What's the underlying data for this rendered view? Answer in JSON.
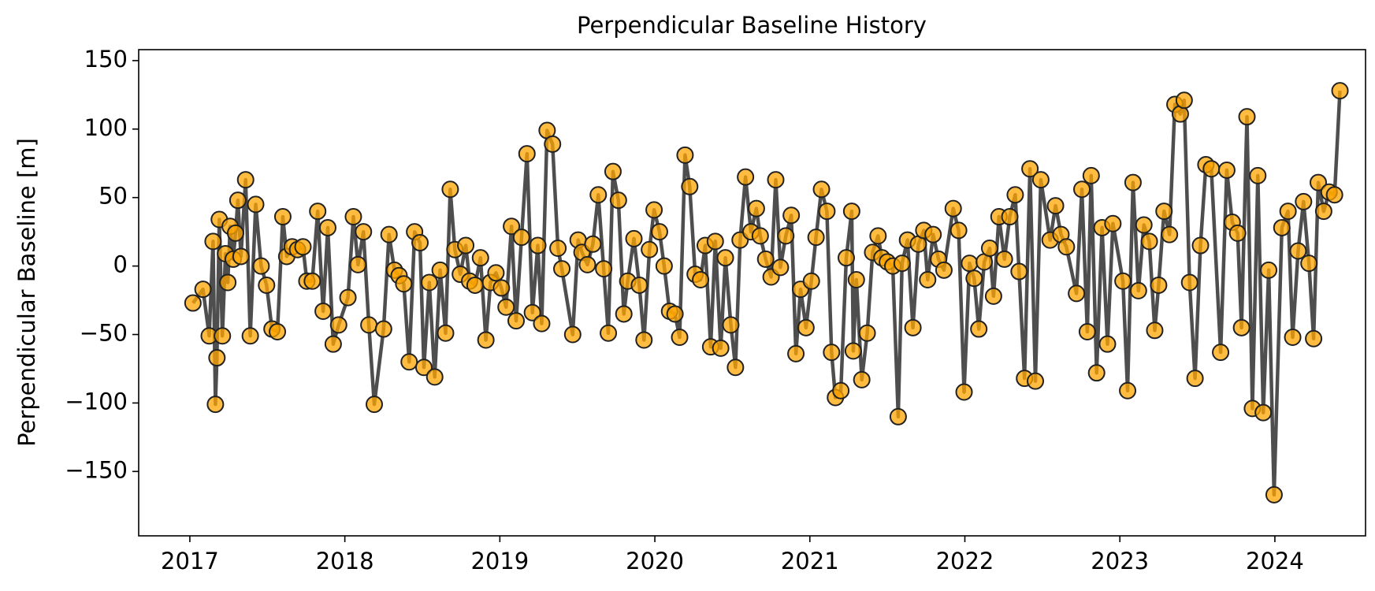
{
  "chart_data": {
    "type": "line",
    "title": "Perpendicular Baseline History",
    "ylabel": "Perpendicular Baseline [m]",
    "x": [
      2017.02,
      2017.085,
      2017.125,
      2017.15,
      2017.165,
      2017.175,
      2017.19,
      2017.21,
      2017.23,
      2017.245,
      2017.26,
      2017.28,
      2017.295,
      2017.31,
      2017.33,
      2017.36,
      2017.39,
      2017.425,
      2017.46,
      2017.495,
      2017.53,
      2017.565,
      2017.6,
      2017.625,
      2017.66,
      2017.695,
      2017.73,
      2017.755,
      2017.79,
      2017.825,
      2017.86,
      2017.89,
      2017.925,
      2017.96,
      2018.02,
      2018.055,
      2018.085,
      2018.12,
      2018.155,
      2018.19,
      2018.25,
      2018.285,
      2018.32,
      2018.35,
      2018.38,
      2018.415,
      2018.45,
      2018.485,
      2018.51,
      2018.545,
      2018.58,
      2018.615,
      2018.65,
      2018.68,
      2018.71,
      2018.745,
      2018.78,
      2018.805,
      2018.84,
      2018.875,
      2018.91,
      2018.94,
      2018.975,
      2019.01,
      2019.04,
      2019.075,
      2019.105,
      2019.14,
      2019.175,
      2019.21,
      2019.245,
      2019.27,
      2019.305,
      2019.34,
      2019.375,
      2019.4,
      2019.47,
      2019.505,
      2019.53,
      2019.565,
      2019.6,
      2019.635,
      2019.67,
      2019.7,
      2019.73,
      2019.765,
      2019.8,
      2019.825,
      2019.865,
      2019.9,
      2019.93,
      2019.965,
      2019.995,
      2020.03,
      2020.06,
      2020.095,
      2020.13,
      2020.16,
      2020.195,
      2020.225,
      2020.26,
      2020.295,
      2020.325,
      2020.36,
      2020.39,
      2020.425,
      2020.455,
      2020.49,
      2020.52,
      2020.55,
      2020.585,
      2020.62,
      2020.655,
      2020.68,
      2020.715,
      2020.75,
      2020.78,
      2020.81,
      2020.845,
      2020.88,
      2020.91,
      2020.94,
      2020.975,
      2021.01,
      2021.04,
      2021.075,
      2021.11,
      2021.14,
      2021.165,
      2021.2,
      2021.235,
      2021.27,
      2021.28,
      2021.3,
      2021.335,
      2021.37,
      2021.405,
      2021.44,
      2021.465,
      2021.5,
      2021.535,
      2021.57,
      2021.595,
      2021.63,
      2021.665,
      2021.7,
      2021.735,
      2021.76,
      2021.795,
      2021.83,
      2021.865,
      2021.925,
      2021.96,
      2021.995,
      2022.03,
      2022.06,
      2022.09,
      2022.125,
      2022.16,
      2022.185,
      2022.22,
      2022.255,
      2022.29,
      2022.325,
      2022.35,
      2022.385,
      2022.42,
      2022.455,
      2022.49,
      2022.55,
      2022.585,
      2022.62,
      2022.655,
      2022.72,
      2022.755,
      2022.79,
      2022.815,
      2022.85,
      2022.885,
      2022.92,
      2022.955,
      2023.02,
      2023.05,
      2023.085,
      2023.12,
      2023.155,
      2023.19,
      2023.225,
      2023.25,
      2023.285,
      2023.32,
      2023.355,
      2023.39,
      2023.415,
      2023.45,
      2023.485,
      2023.52,
      2023.555,
      2023.59,
      2023.65,
      2023.69,
      2023.725,
      2023.76,
      2023.785,
      2023.82,
      2023.855,
      2023.89,
      2023.925,
      2023.96,
      2023.995,
      2024.045,
      2024.085,
      2024.115,
      2024.15,
      2024.185,
      2024.22,
      2024.25,
      2024.28,
      2024.315,
      2024.35,
      2024.385,
      2024.42
    ],
    "values": [
      -27,
      -17,
      -51,
      18,
      -101,
      -67,
      34,
      -51,
      9,
      -12,
      29,
      5,
      24,
      48,
      7,
      63,
      -51,
      45,
      0,
      -14,
      -46,
      -48,
      36,
      7,
      14,
      12,
      14,
      -11,
      -11,
      40,
      -33,
      28,
      -57,
      -43,
      -23,
      36,
      1,
      25,
      -43,
      -101,
      -46,
      23,
      -3,
      -7,
      -13,
      -70,
      25,
      17,
      -74,
      -12,
      -81,
      -3,
      -49,
      56,
      12,
      -6,
      15,
      -11,
      -14,
      6,
      -54,
      -12,
      -5,
      -16,
      -30,
      29,
      -40,
      21,
      82,
      -34,
      15,
      -42,
      99,
      89,
      13,
      -2,
      -50,
      19,
      10,
      1,
      16,
      52,
      -2,
      -49,
      69,
      48,
      -35,
      -11,
      20,
      -14,
      -54,
      12,
      41,
      25,
      0,
      -33,
      -35,
      -52,
      81,
      58,
      -6,
      -10,
      15,
      -59,
      18,
      -60,
      6,
      -43,
      -74,
      19,
      65,
      25,
      42,
      22,
      5,
      -8,
      63,
      -1,
      22,
      37,
      -64,
      -17,
      -45,
      -11,
      21,
      56,
      40,
      -63,
      -96,
      -91,
      6,
      40,
      -62,
      -10,
      -83,
      -49,
      10,
      22,
      6,
      3,
      0,
      -110,
      2,
      19,
      -45,
      16,
      26,
      -10,
      23,
      5,
      -3,
      42,
      26,
      -92,
      2,
      -9,
      -46,
      3,
      13,
      -22,
      36,
      5,
      36,
      52,
      -4,
      -82,
      71,
      -84,
      63,
      19,
      44,
      23,
      14,
      -20,
      56,
      -48,
      66,
      -78,
      28,
      -57,
      31,
      -11,
      -91,
      61,
      -18,
      30,
      18,
      -47,
      -14,
      40,
      23,
      118,
      111,
      121,
      -12,
      -82,
      15,
      74,
      71,
      -63,
      70,
      32,
      24,
      -45,
      109,
      -104,
      66,
      -107,
      -3,
      -167,
      28,
      40,
      -52,
      11,
      47,
      2,
      -53,
      61,
      40,
      54,
      52,
      128
    ],
    "color": "#ffa500",
    "line_color": "#444444",
    "xlim": [
      2016.67,
      2024.585
    ],
    "xticks": [
      2017,
      2018,
      2019,
      2020,
      2021,
      2022,
      2023,
      2024
    ],
    "ylim": [
      -197,
      158
    ],
    "yticks": [
      {
        "value": -150,
        "label": "−150"
      },
      {
        "value": -100,
        "label": "−100"
      },
      {
        "value": -50,
        "label": "−50"
      },
      0,
      50,
      100,
      150
    ]
  }
}
